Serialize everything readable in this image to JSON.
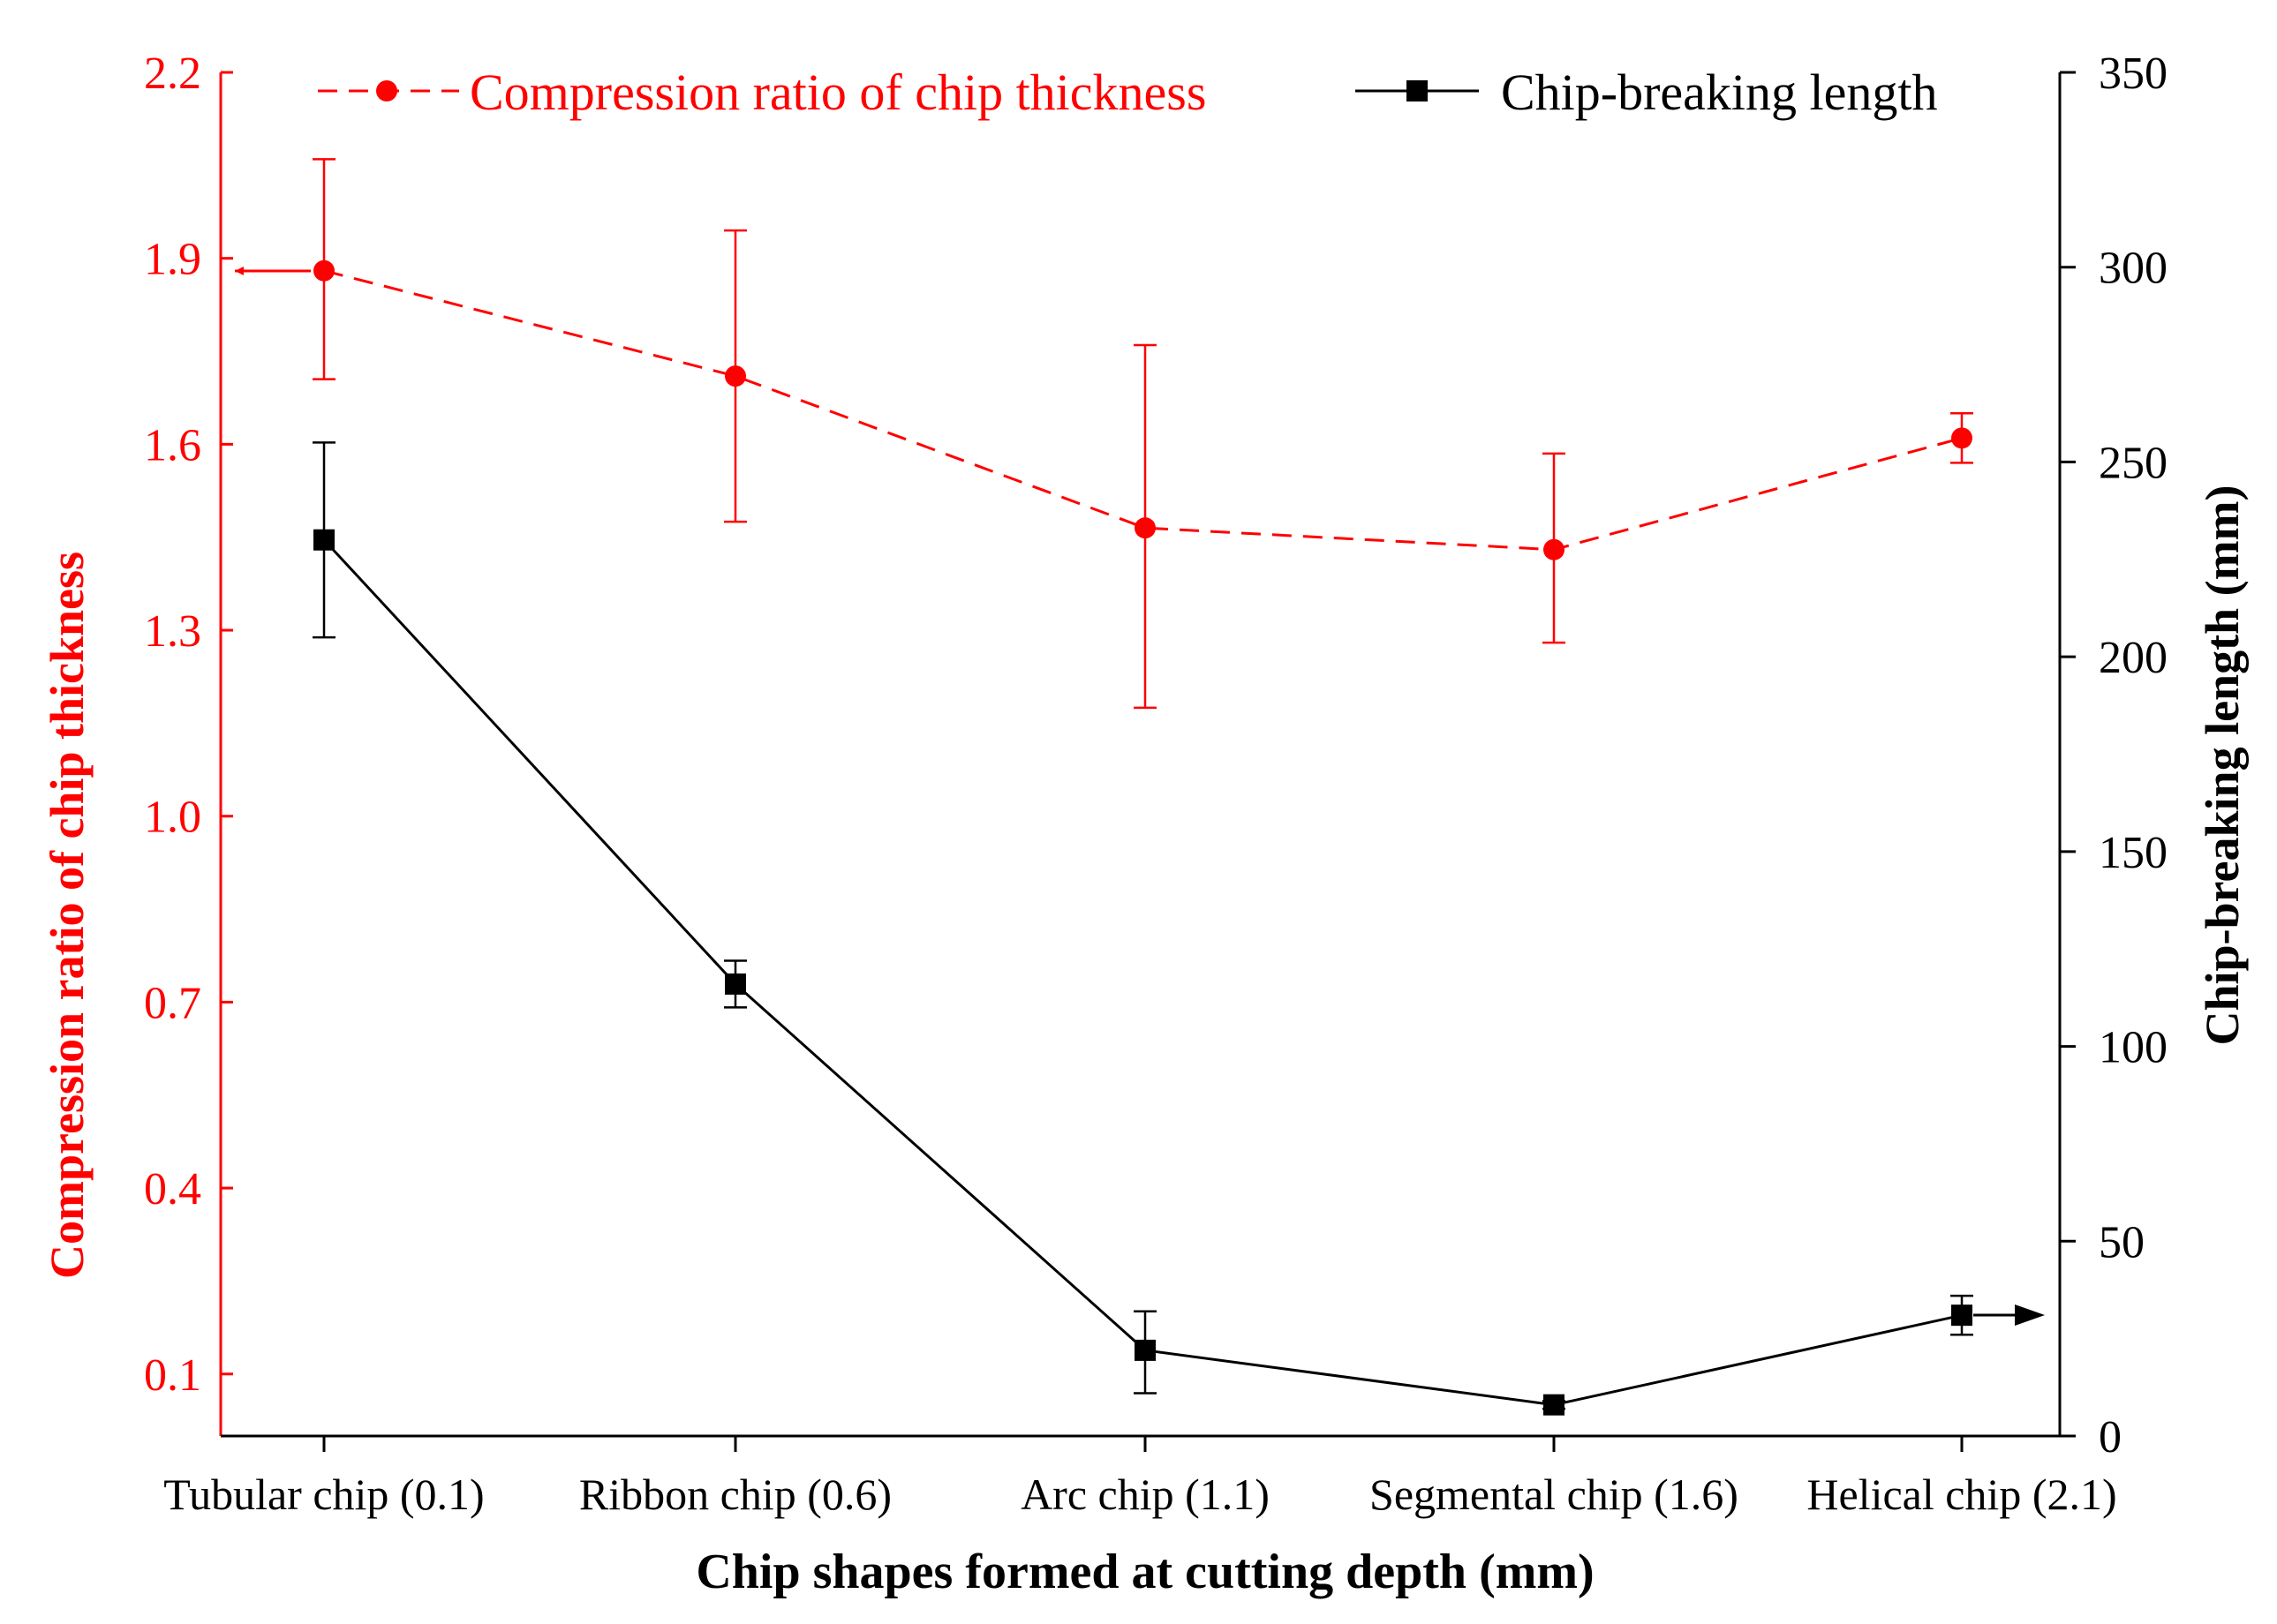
{
  "colors": {
    "red": "#ff0000",
    "black": "#000000",
    "background": "#ffffff"
  },
  "chart_data": {
    "type": "line",
    "title": "",
    "xlabel": "Chip shapes formed at cutting depth (mm)",
    "ylabel_left": "Compression ratio of chip thickness",
    "ylabel_right": "Chip-breaking length (mm)",
    "categories": [
      "Tubular chip (0.1)",
      "Ribbon chip (0.6)",
      "Arc chip (1.1)",
      "Segmental chip (1.6)",
      "Helical chip (2.1)"
    ],
    "ylim_left": [
      -0.0,
      2.2
    ],
    "ylim_right": [
      0,
      350
    ],
    "yticks_left": [
      "0.1",
      "0.4",
      "0.7",
      "1.0",
      "1.3",
      "1.6",
      "1.9",
      "2.2"
    ],
    "yticks_right": [
      "0",
      "50",
      "100",
      "150",
      "200",
      "250",
      "300",
      "350"
    ],
    "legend_placement": "top",
    "series": [
      {
        "name": "Compression ratio of chip thickness",
        "axis": "left",
        "color": "#ff0000",
        "line_style": "dashed",
        "marker": "circle",
        "values": [
          1.88,
          1.71,
          1.465,
          1.43,
          1.61
        ],
        "err_lower": [
          1.705,
          1.475,
          1.175,
          1.28,
          1.57
        ],
        "err_upper": [
          2.06,
          1.945,
          1.76,
          1.585,
          1.65
        ]
      },
      {
        "name": "Chip-breaking length",
        "axis": "right",
        "color": "#000000",
        "line_style": "solid",
        "marker": "square",
        "values": [
          230,
          116,
          22,
          8,
          31
        ],
        "err_lower": [
          205,
          110,
          11,
          7,
          26
        ],
        "err_upper": [
          255,
          122,
          32,
          9,
          36
        ]
      }
    ],
    "annotations": [
      {
        "type": "arrow",
        "series": "Compression ratio of chip thickness",
        "direction": "left",
        "meaning": "refers to left axis"
      },
      {
        "type": "arrow",
        "series": "Chip-breaking length",
        "direction": "right",
        "meaning": "refers to right axis"
      }
    ]
  }
}
